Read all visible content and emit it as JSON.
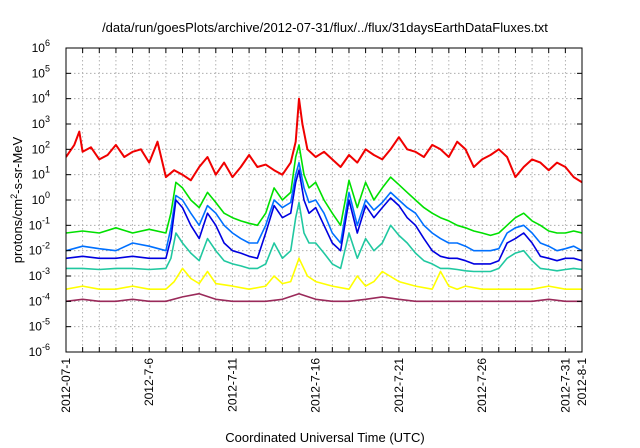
{
  "chart_data": {
    "type": "line",
    "title": "/data/run/goesPlots/archive/2012-07-31/flux/../flux/31daysEarthDataFluxes.txt",
    "xlabel": "Coordinated Universal Time (UTC)",
    "ylabel_pre": "protons/cm",
    "ylabel_sup": "2",
    "ylabel_post": "-s-sr-MeV",
    "yscale": "log",
    "ylim_exp": [
      -6,
      6
    ],
    "xlim_day": [
      1,
      32
    ],
    "grid": true,
    "x_ticks": [
      {
        "day": 1,
        "label": "2012-07-1"
      },
      {
        "day": 6,
        "label": "2012-7-6"
      },
      {
        "day": 11,
        "label": "2012-7-11"
      },
      {
        "day": 16,
        "label": "2012-7-16"
      },
      {
        "day": 21,
        "label": "2012-7-21"
      },
      {
        "day": 26,
        "label": "2012-7-26"
      },
      {
        "day": 31,
        "label": "2012-7-31"
      },
      {
        "day": 32,
        "label": "2012-8-1"
      }
    ],
    "y_ticks": [
      {
        "exp": -6,
        "base": "10",
        "sup": "-6"
      },
      {
        "exp": -5,
        "base": "10",
        "sup": "-5"
      },
      {
        "exp": -4,
        "base": "10",
        "sup": "-4"
      },
      {
        "exp": -3,
        "base": "10",
        "sup": "-3"
      },
      {
        "exp": -2,
        "base": "10",
        "sup": "-2"
      },
      {
        "exp": -1,
        "base": "10",
        "sup": "-1"
      },
      {
        "exp": 0,
        "base": "10",
        "sup": "0"
      },
      {
        "exp": 1,
        "base": "10",
        "sup": "1"
      },
      {
        "exp": 2,
        "base": "10",
        "sup": "2"
      },
      {
        "exp": 3,
        "base": "10",
        "sup": "3"
      },
      {
        "exp": 4,
        "base": "10",
        "sup": "4"
      },
      {
        "exp": 5,
        "base": "10",
        "sup": "5"
      },
      {
        "exp": 6,
        "base": "10",
        "sup": "6"
      }
    ],
    "series": [
      {
        "color": "#f00000",
        "width": 2.0,
        "x": [
          1.0,
          1.5,
          1.8,
          2.0,
          2.5,
          3.0,
          3.5,
          4.0,
          4.5,
          5.0,
          5.5,
          6.0,
          6.5,
          7.0,
          7.5,
          8.0,
          8.5,
          9.0,
          9.5,
          10.0,
          10.5,
          11.0,
          11.5,
          12.0,
          12.5,
          13.0,
          13.5,
          14.0,
          14.5,
          14.8,
          15.0,
          15.2,
          15.5,
          16.0,
          16.5,
          17.0,
          17.5,
          18.0,
          18.5,
          19.0,
          19.5,
          20.0,
          20.5,
          21.0,
          21.5,
          22.0,
          22.5,
          23.0,
          23.5,
          24.0,
          24.5,
          25.0,
          25.5,
          26.0,
          26.5,
          27.0,
          27.5,
          28.0,
          28.5,
          29.0,
          29.5,
          30.0,
          30.5,
          31.0,
          31.5,
          32.0
        ],
        "y": [
          50,
          150,
          500,
          80,
          120,
          40,
          60,
          150,
          50,
          80,
          100,
          30,
          200,
          8,
          15,
          10,
          6,
          20,
          50,
          10,
          30,
          8,
          20,
          60,
          20,
          25,
          15,
          10,
          30,
          200,
          10000,
          1000,
          100,
          50,
          80,
          40,
          20,
          60,
          30,
          100,
          60,
          40,
          100,
          300,
          100,
          80,
          50,
          150,
          100,
          50,
          200,
          100,
          20,
          40,
          60,
          100,
          50,
          8,
          20,
          40,
          30,
          15,
          30,
          20,
          8,
          5
        ]
      },
      {
        "color": "#00e000",
        "width": 1.6,
        "x": [
          1.0,
          2.0,
          3.0,
          4.0,
          5.0,
          6.0,
          7.0,
          7.3,
          7.6,
          8.0,
          8.5,
          9.0,
          9.5,
          10.0,
          10.5,
          11.0,
          11.5,
          12.0,
          12.5,
          13.0,
          13.5,
          14.0,
          14.5,
          14.8,
          15.0,
          15.3,
          15.6,
          16.0,
          16.5,
          17.0,
          17.5,
          18.0,
          18.5,
          19.0,
          19.5,
          20.0,
          20.5,
          21.0,
          21.5,
          22.0,
          22.5,
          23.0,
          23.5,
          24.0,
          24.5,
          25.0,
          25.5,
          26.0,
          26.5,
          27.0,
          27.5,
          28.0,
          28.5,
          29.0,
          29.5,
          30.0,
          30.5,
          31.0,
          31.5,
          32.0
        ],
        "y": [
          0.05,
          0.06,
          0.05,
          0.08,
          0.05,
          0.07,
          0.05,
          0.3,
          5,
          3,
          1,
          0.5,
          2,
          0.8,
          0.3,
          0.2,
          0.15,
          0.12,
          0.1,
          0.3,
          3,
          1,
          2,
          50,
          150,
          10,
          3,
          5,
          1,
          0.3,
          0.1,
          6,
          0.5,
          5,
          1,
          3,
          8,
          4,
          2,
          1,
          0.5,
          0.3,
          0.2,
          0.15,
          0.1,
          0.08,
          0.06,
          0.05,
          0.04,
          0.05,
          0.1,
          0.2,
          0.3,
          0.15,
          0.1,
          0.06,
          0.05,
          0.05,
          0.06,
          0.05
        ]
      },
      {
        "color": "#0070ff",
        "width": 1.6,
        "x": [
          1.0,
          2.0,
          3.0,
          4.0,
          5.0,
          6.0,
          7.0,
          7.3,
          7.6,
          8.0,
          8.5,
          9.0,
          9.5,
          10.0,
          10.5,
          11.0,
          11.5,
          12.0,
          12.5,
          13.0,
          13.5,
          14.0,
          14.5,
          14.8,
          15.0,
          15.3,
          15.6,
          16.0,
          16.5,
          17.0,
          17.5,
          18.0,
          18.5,
          19.0,
          19.5,
          20.0,
          20.5,
          21.0,
          21.5,
          22.0,
          22.5,
          23.0,
          23.5,
          24.0,
          24.5,
          25.0,
          25.5,
          26.0,
          26.5,
          27.0,
          27.5,
          28.0,
          28.5,
          29.0,
          29.5,
          30.0,
          30.5,
          31.0,
          31.5,
          32.0
        ],
        "y": [
          0.01,
          0.015,
          0.012,
          0.01,
          0.02,
          0.015,
          0.01,
          0.08,
          1.5,
          1,
          0.3,
          0.1,
          0.6,
          0.3,
          0.1,
          0.05,
          0.03,
          0.02,
          0.02,
          0.1,
          1,
          0.5,
          0.8,
          10,
          30,
          3,
          0.8,
          1,
          0.3,
          0.05,
          0.02,
          2,
          0.1,
          1,
          0.4,
          0.8,
          2,
          1,
          0.5,
          0.3,
          0.1,
          0.05,
          0.03,
          0.02,
          0.02,
          0.015,
          0.01,
          0.01,
          0.01,
          0.012,
          0.05,
          0.08,
          0.1,
          0.05,
          0.02,
          0.015,
          0.01,
          0.012,
          0.015,
          0.01
        ]
      },
      {
        "color": "#0000e0",
        "width": 1.6,
        "x": [
          1.0,
          2.0,
          3.0,
          4.0,
          5.0,
          6.0,
          7.0,
          7.3,
          7.6,
          8.0,
          8.5,
          9.0,
          9.5,
          10.0,
          10.5,
          11.0,
          11.5,
          12.0,
          12.5,
          13.0,
          13.5,
          14.0,
          14.5,
          14.8,
          15.0,
          15.3,
          15.6,
          16.0,
          16.5,
          17.0,
          17.5,
          18.0,
          18.5,
          19.0,
          19.5,
          20.0,
          20.5,
          21.0,
          21.5,
          22.0,
          22.5,
          23.0,
          23.5,
          24.0,
          24.5,
          25.0,
          25.5,
          26.0,
          26.5,
          27.0,
          27.5,
          28.0,
          28.5,
          29.0,
          29.5,
          30.0,
          30.5,
          31.0,
          31.5,
          32.0
        ],
        "y": [
          0.005,
          0.006,
          0.005,
          0.005,
          0.006,
          0.005,
          0.005,
          0.03,
          1,
          0.5,
          0.1,
          0.03,
          0.3,
          0.1,
          0.02,
          0.01,
          0.008,
          0.006,
          0.005,
          0.05,
          0.6,
          0.2,
          0.3,
          5,
          15,
          1,
          0.3,
          0.5,
          0.1,
          0.02,
          0.01,
          1,
          0.05,
          0.6,
          0.2,
          0.5,
          1.2,
          0.6,
          0.2,
          0.1,
          0.03,
          0.01,
          0.006,
          0.005,
          0.005,
          0.004,
          0.003,
          0.003,
          0.003,
          0.004,
          0.02,
          0.03,
          0.05,
          0.02,
          0.006,
          0.005,
          0.004,
          0.005,
          0.005,
          0.004
        ]
      },
      {
        "color": "#20c8a0",
        "width": 1.6,
        "x": [
          1.0,
          2.0,
          3.0,
          4.0,
          5.0,
          6.0,
          7.0,
          7.3,
          7.6,
          8.0,
          8.5,
          9.0,
          9.5,
          10.0,
          10.5,
          11.0,
          11.5,
          12.0,
          12.5,
          13.0,
          13.5,
          14.0,
          14.5,
          14.8,
          15.0,
          15.3,
          15.6,
          16.0,
          16.5,
          17.0,
          17.5,
          18.0,
          18.5,
          19.0,
          19.5,
          20.0,
          20.5,
          21.0,
          21.5,
          22.0,
          22.5,
          23.0,
          23.5,
          24.0,
          24.5,
          25.0,
          25.5,
          26.0,
          26.5,
          27.0,
          27.5,
          28.0,
          28.5,
          29.0,
          29.5,
          30.0,
          30.5,
          31.0,
          31.5,
          32.0
        ],
        "y": [
          0.002,
          0.002,
          0.0018,
          0.002,
          0.002,
          0.0018,
          0.002,
          0.005,
          0.05,
          0.02,
          0.008,
          0.004,
          0.03,
          0.01,
          0.004,
          0.003,
          0.0025,
          0.002,
          0.002,
          0.003,
          0.02,
          0.005,
          0.01,
          0.2,
          0.8,
          0.05,
          0.02,
          0.02,
          0.008,
          0.003,
          0.002,
          0.05,
          0.005,
          0.03,
          0.01,
          0.02,
          0.1,
          0.04,
          0.02,
          0.008,
          0.004,
          0.003,
          0.002,
          0.002,
          0.0018,
          0.0016,
          0.0015,
          0.0015,
          0.0015,
          0.002,
          0.005,
          0.008,
          0.01,
          0.004,
          0.002,
          0.0018,
          0.0016,
          0.0018,
          0.002,
          0.0018
        ]
      },
      {
        "color": "#ffff00",
        "width": 1.6,
        "x": [
          1.0,
          2.0,
          3.0,
          4.0,
          5.0,
          6.0,
          7.0,
          7.5,
          8.0,
          8.5,
          9.0,
          9.5,
          10.0,
          11.0,
          12.0,
          13.0,
          13.5,
          14.0,
          14.5,
          15.0,
          15.5,
          16.0,
          17.0,
          18.0,
          18.5,
          19.0,
          19.5,
          20.0,
          21.0,
          22.0,
          23.0,
          23.5,
          24.0,
          24.5,
          25.0,
          26.0,
          27.0,
          28.0,
          29.0,
          30.0,
          31.0,
          32.0
        ],
        "y": [
          0.0003,
          0.0004,
          0.0003,
          0.0003,
          0.0004,
          0.0003,
          0.0003,
          0.0006,
          0.002,
          0.0008,
          0.0005,
          0.0015,
          0.0005,
          0.0004,
          0.0003,
          0.0004,
          0.001,
          0.0005,
          0.0006,
          0.005,
          0.001,
          0.0006,
          0.0004,
          0.0003,
          0.001,
          0.0004,
          0.0006,
          0.0015,
          0.0006,
          0.0004,
          0.0003,
          0.0015,
          0.0004,
          0.0003,
          0.0004,
          0.0003,
          0.0003,
          0.0003,
          0.0003,
          0.0004,
          0.0003,
          0.0003
        ]
      },
      {
        "color": "#9a2a5a",
        "width": 1.6,
        "x": [
          1.0,
          2.0,
          3.0,
          4.0,
          5.0,
          6.0,
          7.0,
          8.0,
          9.0,
          10.0,
          11.0,
          12.0,
          13.0,
          14.0,
          15.0,
          16.0,
          17.0,
          18.0,
          19.0,
          20.0,
          21.0,
          22.0,
          23.0,
          24.0,
          25.0,
          26.0,
          27.0,
          28.0,
          29.0,
          30.0,
          31.0,
          32.0
        ],
        "y": [
          0.0001,
          0.00012,
          0.0001,
          0.0001,
          0.00012,
          0.0001,
          0.0001,
          0.00015,
          0.0002,
          0.00012,
          0.0001,
          0.0001,
          0.0001,
          0.00012,
          0.0002,
          0.00012,
          0.0001,
          0.0001,
          0.00012,
          0.00015,
          0.00012,
          0.0001,
          0.0001,
          0.0001,
          0.0001,
          0.0001,
          0.0001,
          0.0001,
          0.0001,
          0.00012,
          0.0001,
          0.0001
        ]
      }
    ]
  }
}
